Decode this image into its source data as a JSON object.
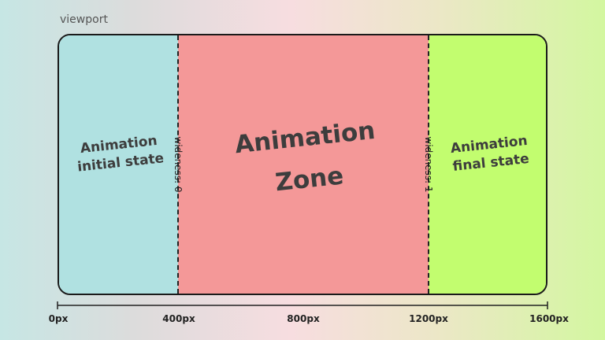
{
  "viewport_label": "viewport",
  "zones": {
    "initial": {
      "line1": "Animation",
      "line2": "initial state",
      "color": "#b0e1e1"
    },
    "animation": {
      "line1": "Animation",
      "line2": "Zone",
      "color": "#f49898"
    },
    "final": {
      "line1": "Animation",
      "line2": "final state",
      "color": "#c2fd6f"
    }
  },
  "wideness_labels": {
    "start": "wideness: 0",
    "end": "wideness: 1"
  },
  "axis_ticks": [
    "0px",
    "400px",
    "800px",
    "1200px",
    "1600px"
  ]
}
